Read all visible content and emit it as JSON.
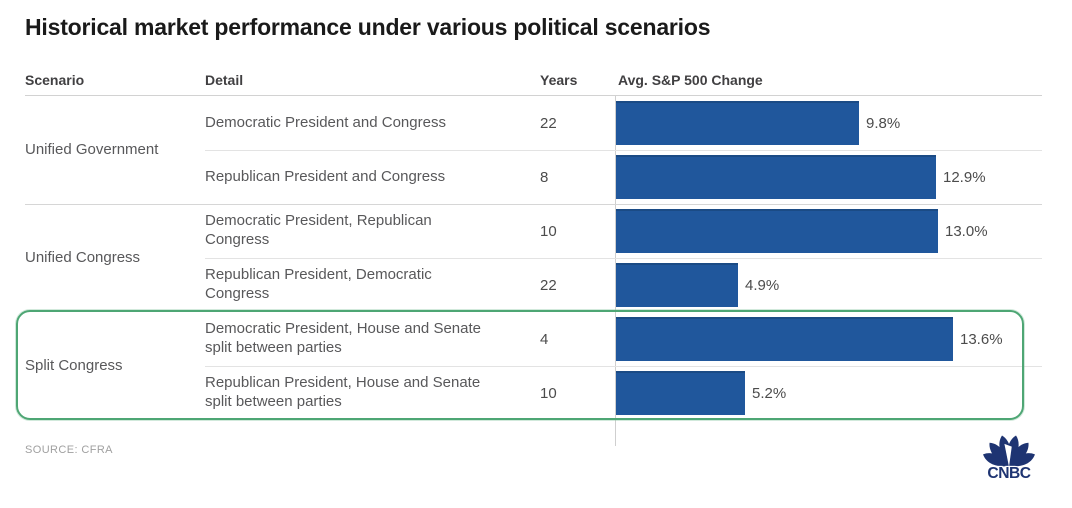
{
  "title": "Historical market performance under various political scenarios",
  "header": {
    "scenario": "Scenario",
    "detail": "Detail",
    "years": "Years",
    "change": "Avg. S&P 500 Change"
  },
  "source": "SOURCE: CFRA",
  "logo": {
    "text": "CNBC"
  },
  "colors": {
    "bar_blue": "#20579c",
    "highlight_green": "#4ea674",
    "logo_navy": "#1e3472"
  },
  "chart_data": {
    "type": "bar",
    "orientation": "horizontal",
    "title": "Historical market performance under various political scenarios",
    "value_axis_label": "Avg. S&P 500 Change",
    "unit": "percent",
    "xlim": [
      0,
      14
    ],
    "grid": false,
    "groups": [
      {
        "scenario": "Unified Government",
        "highlighted": false,
        "rows": [
          {
            "detail": "Democratic President and Congress",
            "years": "22",
            "change_pct": 9.8,
            "label": "9.8%"
          },
          {
            "detail": "Republican President and Congress",
            "years": "8",
            "change_pct": 12.9,
            "label": "12.9%"
          }
        ]
      },
      {
        "scenario": "Unified Congress",
        "highlighted": false,
        "rows": [
          {
            "detail": "Democratic President, Republican Congress",
            "years": "10",
            "change_pct": 13.0,
            "label": "13.0%"
          },
          {
            "detail": "Republican President, Democratic Congress",
            "years": "22",
            "change_pct": 4.9,
            "label": "4.9%"
          }
        ]
      },
      {
        "scenario": "Split Congress",
        "highlighted": true,
        "rows": [
          {
            "detail": "Democratic President, House and Senate split between parties",
            "years": "4",
            "change_pct": 13.6,
            "label": "13.6%"
          },
          {
            "detail": "Republican President, House and Senate split between parties",
            "years": "10",
            "change_pct": 5.2,
            "label": "5.2%"
          }
        ]
      }
    ]
  }
}
